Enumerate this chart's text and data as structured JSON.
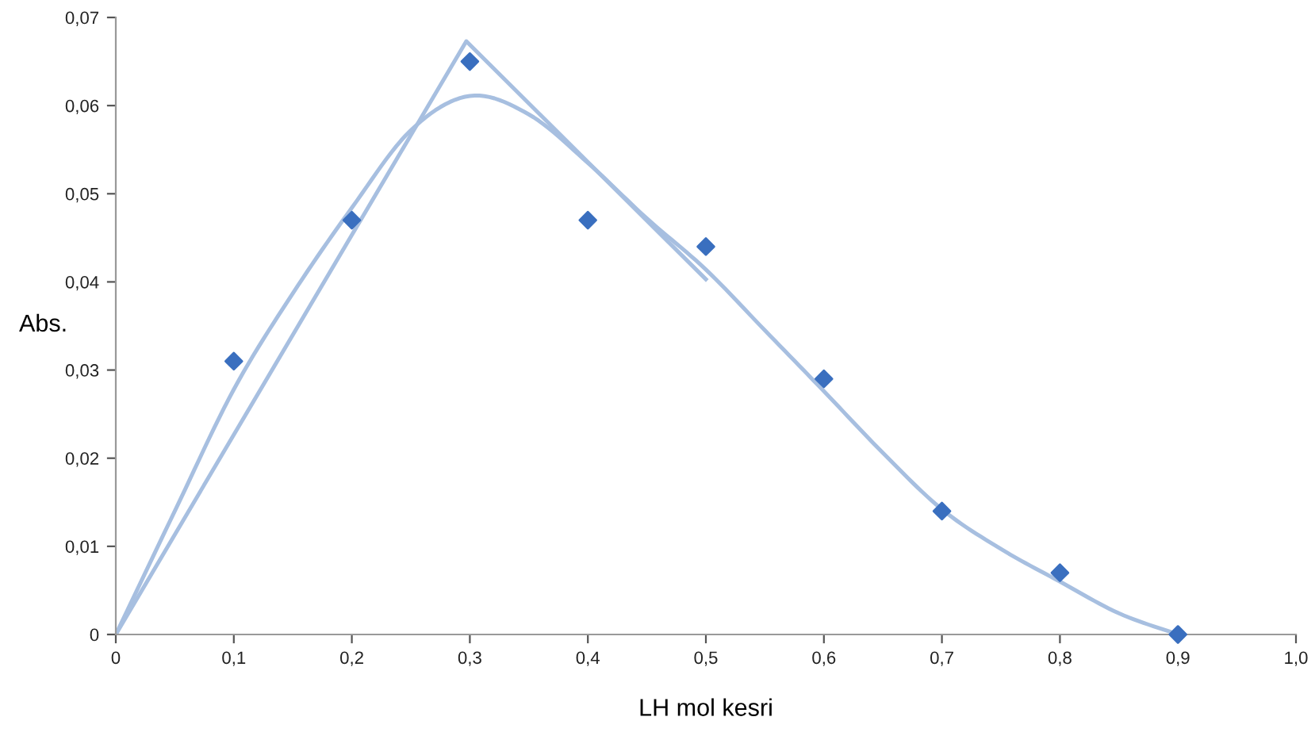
{
  "chart_data": {
    "type": "scatter",
    "xlabel": "LH mol kesri",
    "ylabel": "Abs.",
    "xlim": [
      0,
      1.0
    ],
    "ylim": [
      0,
      0.07
    ],
    "xticks": [
      0,
      {
        "value": 0.1,
        "label": "0,1"
      },
      {
        "value": 0.2,
        "label": "0,2"
      },
      {
        "value": 0.3,
        "label": "0,3"
      },
      {
        "value": 0.4,
        "label": "0,4"
      },
      {
        "value": 0.5,
        "label": "0,5"
      },
      {
        "value": 0.6,
        "label": "0,6"
      },
      {
        "value": 0.7,
        "label": "0,7"
      },
      {
        "value": 0.8,
        "label": "0,8"
      },
      {
        "value": 0.9,
        "label": "0,9"
      },
      {
        "value": 1.0,
        "label": "1,0"
      }
    ],
    "yticks": [
      0,
      {
        "value": 0.01,
        "label": "0,01"
      },
      {
        "value": 0.02,
        "label": "0,02"
      },
      {
        "value": 0.03,
        "label": "0,03"
      },
      {
        "value": 0.04,
        "label": "0,04"
      },
      {
        "value": 0.05,
        "label": "0,05"
      },
      {
        "value": 0.06,
        "label": "0,06"
      },
      {
        "value": 0.07,
        "label": "0,07"
      }
    ],
    "grid": false,
    "legend": false,
    "series": [
      {
        "type": "line",
        "color": "#a7bfe0",
        "x": [
          0,
          0.05,
          0.1,
          0.15,
          0.2,
          0.25,
          0.3,
          0.35,
          0.4,
          0.45,
          0.5,
          0.55,
          0.6,
          0.65,
          0.7,
          0.75,
          0.8,
          0.85,
          0.9
        ],
        "values": [
          0,
          0.014,
          0.0278,
          0.0387,
          0.0484,
          0.0572,
          0.0611,
          0.059,
          0.0535,
          0.0472,
          0.0414,
          0.0345,
          0.0276,
          0.0206,
          0.0142,
          0.0097,
          0.006,
          0.0024,
          0
        ],
        "marker": "none",
        "line_style": "solid"
      },
      {
        "type": "line",
        "color": "#a7bfe0",
        "x": [
          0,
          0.297,
          0.5
        ],
        "values": [
          0,
          0.0673,
          0.0403
        ],
        "marker": "none",
        "line_style": "solid"
      },
      {
        "color": "#3a6fbf",
        "x": [
          0.1,
          0.2,
          0.3,
          0.4,
          0.5,
          0.6,
          0.7,
          0.8,
          0.9
        ],
        "values": [
          0.031,
          0.047,
          0.065,
          0.047,
          0.044,
          0.029,
          0.014,
          0.007,
          0
        ],
        "marker": "diamond"
      }
    ]
  }
}
